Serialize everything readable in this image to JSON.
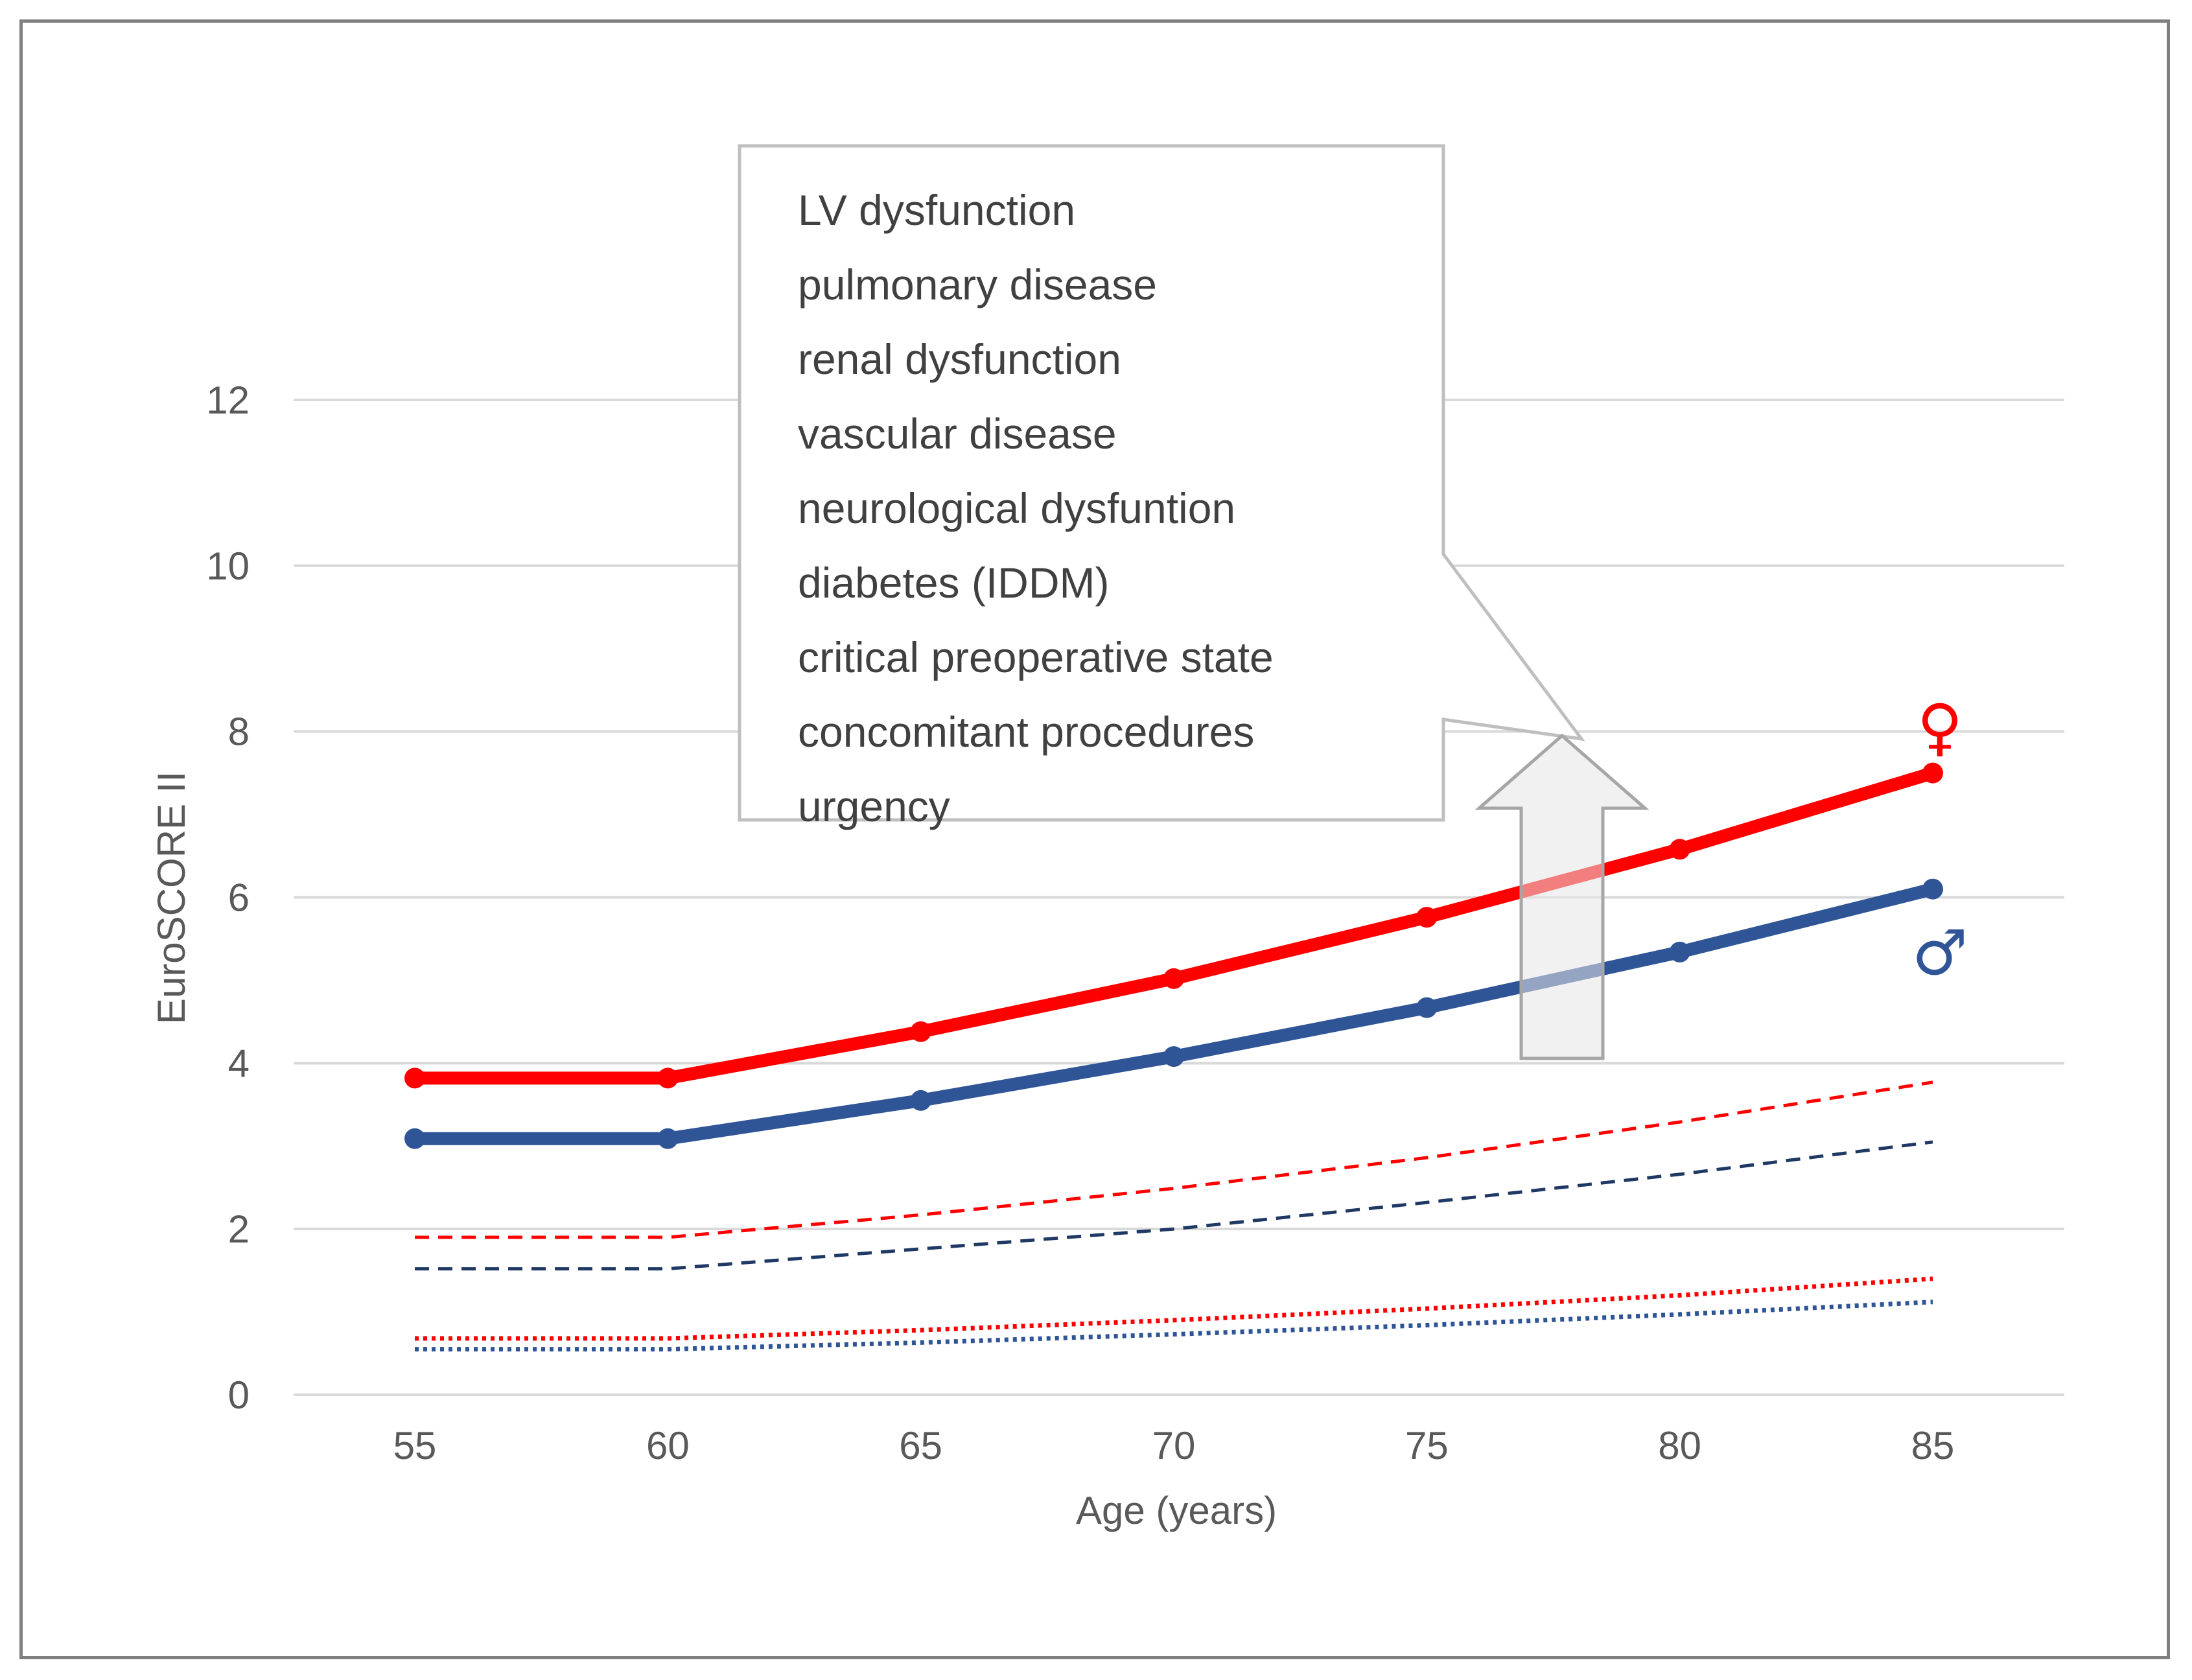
{
  "chart_data": {
    "type": "line",
    "x": [
      55,
      60,
      65,
      70,
      75,
      80,
      85
    ],
    "xlabel": "Age (years)",
    "ylabel": "EuroSCORE II",
    "ylim": [
      0,
      12
    ],
    "yticks": [
      0,
      2,
      4,
      6,
      8,
      10,
      12
    ],
    "grid": true,
    "series": [
      {
        "name": "female",
        "style": "solid-markers",
        "color": "#ff0000",
        "values": [
          3.82,
          3.82,
          4.38,
          5.02,
          5.76,
          6.58,
          7.5
        ]
      },
      {
        "name": "male",
        "style": "solid-markers",
        "color": "#2f5597",
        "values": [
          3.09,
          3.09,
          3.55,
          4.08,
          4.67,
          5.34,
          6.1
        ]
      },
      {
        "name": "female-dashed",
        "style": "dashed",
        "color": "#ff0000",
        "values": [
          1.9,
          1.9,
          2.17,
          2.49,
          2.86,
          3.29,
          3.77
        ]
      },
      {
        "name": "male-dashed",
        "style": "dashed",
        "color": "#1f3864",
        "values": [
          1.52,
          1.52,
          1.76,
          2.0,
          2.32,
          2.66,
          3.05
        ]
      },
      {
        "name": "female-dotted",
        "style": "dotted",
        "color": "#ff0000",
        "values": [
          0.68,
          0.68,
          0.78,
          0.9,
          1.04,
          1.2,
          1.4
        ]
      },
      {
        "name": "male-dotted",
        "style": "dotted",
        "color": "#2f5597",
        "values": [
          0.55,
          0.55,
          0.63,
          0.73,
          0.84,
          0.97,
          1.12
        ]
      }
    ],
    "annotations": {
      "female_symbol": "♀",
      "male_symbol": "♂",
      "callout_items": [
        "LV dysfunction",
        "pulmonary disease",
        "renal dysfunction",
        "vascular disease",
        "neurological dysfuntion",
        "diabetes (IDDM)",
        "critical preoperative state",
        "concomitant procedures",
        "urgency"
      ]
    }
  },
  "colors": {
    "female": "#ff0000",
    "male": "#2f5597",
    "grid": "#d9d9d9",
    "text": "#595959",
    "callout_border": "#bfbfbf",
    "arrow_fill": "#e7e6e6",
    "arrow_stroke": "#a6a6a6"
  }
}
